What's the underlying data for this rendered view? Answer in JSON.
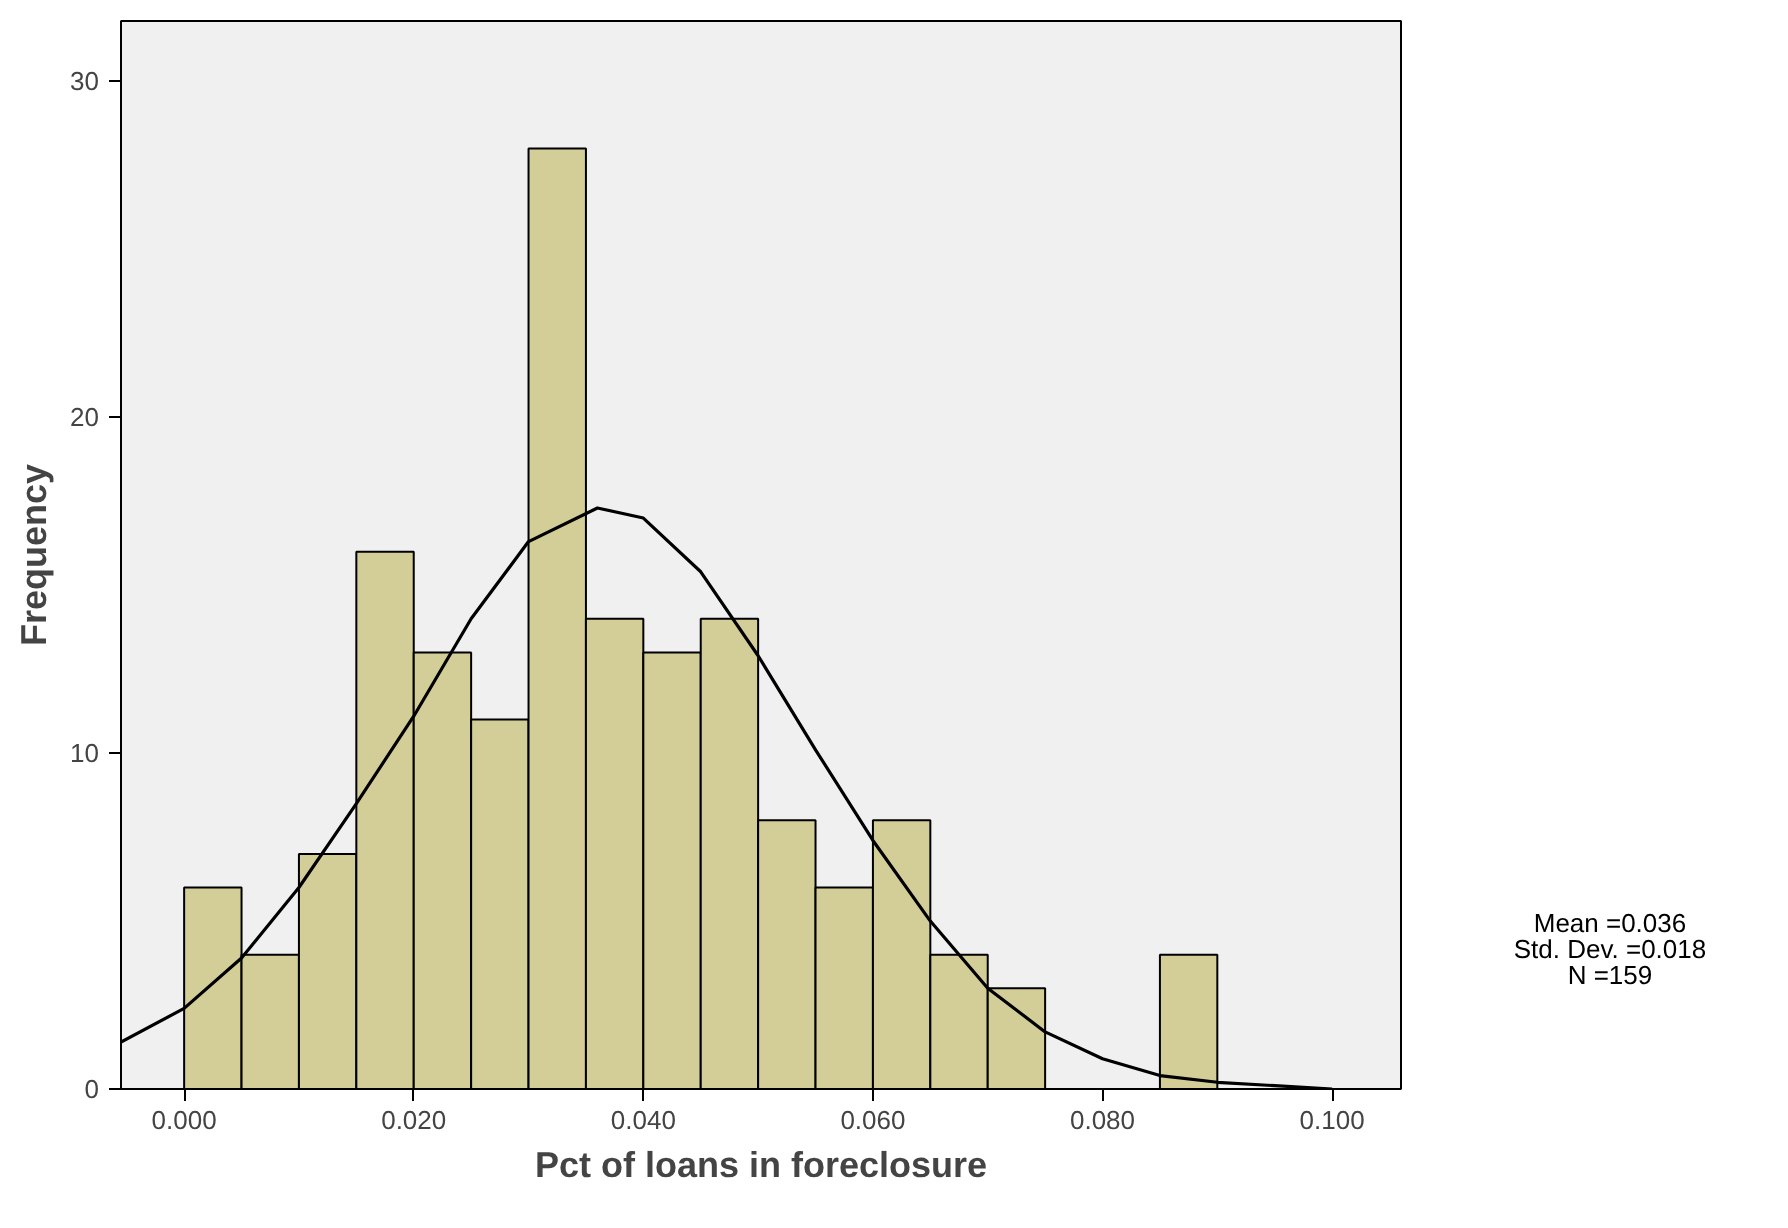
{
  "chart_data": {
    "type": "histogram",
    "xlabel": "Pct of loans in foreclosure",
    "ylabel": "Frequency",
    "xlim": [
      -0.0055,
      0.106
    ],
    "ylim": [
      0,
      31.8
    ],
    "xticks": [
      {
        "value": 0,
        "label": "0.000"
      },
      {
        "value": 0.02,
        "label": "0.020"
      },
      {
        "value": 0.04,
        "label": "0.040"
      },
      {
        "value": 0.06,
        "label": "0.060"
      },
      {
        "value": 0.08,
        "label": "0.080"
      },
      {
        "value": 0.1,
        "label": "0.100"
      }
    ],
    "yticks": [
      0,
      10,
      20,
      30
    ],
    "grid": false,
    "series": [
      {
        "color": "#d3ce97",
        "bins": [
          0,
          0.005,
          0.01,
          0.015,
          0.02,
          0.025,
          0.03,
          0.035,
          0.04,
          0.045,
          0.05,
          0.055,
          0.06,
          0.065,
          0.07,
          0.075,
          0.08,
          0.085,
          0.09
        ],
        "values": [
          6,
          4,
          7,
          16,
          13,
          11,
          28,
          14,
          13,
          14,
          8,
          6,
          8,
          4,
          3,
          0,
          0,
          4
        ]
      },
      {
        "type": "line",
        "color": "#000000",
        "x": [
          -0.0055,
          0,
          0.005,
          0.01,
          0.015,
          0.02,
          0.025,
          0.03,
          0.036,
          0.04,
          0.045,
          0.05,
          0.055,
          0.06,
          0.065,
          0.07,
          0.075,
          0.08,
          0.085,
          0.09,
          0.095,
          0.1
        ],
        "values": [
          1.4,
          2.4,
          3.9,
          6.0,
          8.5,
          11.1,
          14.0,
          16.3,
          17.3,
          17.0,
          15.4,
          12.9,
          10.1,
          7.4,
          5.0,
          3.0,
          1.7,
          0.9,
          0.4,
          0.2,
          0.1,
          0.0
        ]
      }
    ],
    "annotations": [
      "Mean =0.036",
      "Std. Dev. =0.018",
      "N =159"
    ]
  }
}
